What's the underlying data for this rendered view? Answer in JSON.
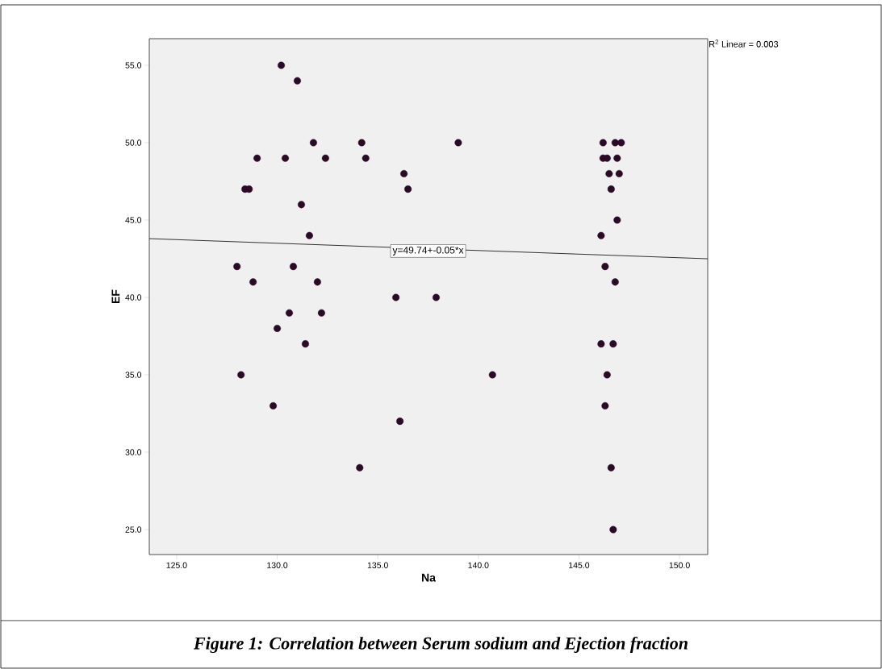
{
  "chart_data": {
    "type": "scatter",
    "xlabel": "Na",
    "ylabel": "EF",
    "xlim": [
      123.64,
      151.4
    ],
    "ylim": [
      23.39,
      56.72
    ],
    "xticks": [
      {
        "value": 125,
        "label": "125.0"
      },
      {
        "value": 130,
        "label": "130.0"
      },
      {
        "value": 135,
        "label": "135.0"
      },
      {
        "value": 140,
        "label": "140.0"
      },
      {
        "value": 145,
        "label": "145.0"
      },
      {
        "value": 150,
        "label": "150.0"
      }
    ],
    "yticks": [
      {
        "value": 25,
        "label": "25.0"
      },
      {
        "value": 30,
        "label": "30.0"
      },
      {
        "value": 35,
        "label": "35.0"
      },
      {
        "value": 40,
        "label": "40.0"
      },
      {
        "value": 45,
        "label": "45.0"
      },
      {
        "value": 50,
        "label": "50.0"
      },
      {
        "value": 55,
        "label": "55.0"
      }
    ],
    "grid": false,
    "series": [
      {
        "color": "#2a0a24",
        "marker": "circle",
        "x": [
          130.2,
          131.0,
          131.8,
          134.2,
          139.0,
          129.0,
          130.4,
          132.4,
          134.4,
          136.3,
          136.5,
          128.4,
          128.6,
          131.2,
          131.6,
          128.0,
          130.8,
          128.8,
          132.0,
          135.9,
          137.9,
          130.6,
          132.2,
          130.0,
          131.4,
          128.2,
          129.8,
          136.1,
          134.1,
          146.2,
          146.8,
          147.1,
          146.2,
          146.4,
          146.9,
          146.5,
          147.0,
          146.6,
          146.9,
          146.1,
          146.3,
          146.8,
          140.7,
          146.1,
          146.7,
          146.4,
          146.3,
          146.6,
          146.7
        ],
        "values": [
          55,
          54,
          50,
          50,
          50,
          49,
          49,
          49,
          49,
          48,
          47,
          47,
          47,
          46,
          44,
          42,
          42,
          41,
          41,
          40,
          40,
          39,
          39,
          38,
          37,
          35,
          33,
          32,
          29,
          50,
          50,
          50,
          49,
          49,
          49,
          48,
          48,
          47,
          45,
          44,
          42,
          41,
          35,
          37,
          37,
          35,
          33,
          29,
          25
        ]
      },
      {
        "type": "line",
        "color": "#000000",
        "marker": "none",
        "x": [
          123.64,
          151.4
        ],
        "values": [
          43.8,
          42.5
        ]
      }
    ],
    "annotations": [
      "R$^{2}$ Linear = 0.003",
      {
        "text": "y=49.74+-0.05*x",
        "x": 137.5,
        "y": 43
      },
      "Figure 1: Correlation between Serum sodium and Ejection fraction"
    ]
  }
}
